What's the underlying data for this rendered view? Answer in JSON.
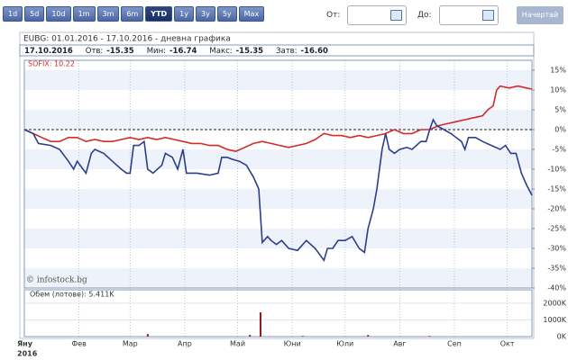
{
  "periods": [
    "1d",
    "5d",
    "10d",
    "1m",
    "3m",
    "6m",
    "YTD",
    "1y",
    "3y",
    "5y",
    "Max"
  ],
  "from_label": "От:",
  "to_label": "До:",
  "draw_button": "Начертай",
  "chart_data": {
    "type": "line",
    "title": "EUBG: 01.01.2016 - 17.10.2016 - дневна графика",
    "info": {
      "date": "17.10.2016",
      "open_label": "Отв:",
      "open": "-15.35",
      "min_label": "Мин:",
      "min": "-16.74",
      "max_label": "Макс:",
      "max": "-15.35",
      "close_label": "Затв:",
      "close": "-16.60"
    },
    "watermark": "© infostock.bg",
    "year_label": "2016",
    "xlim": [
      0,
      288
    ],
    "xticks": [
      {
        "value": 0,
        "label": "Яну"
      },
      {
        "value": 31,
        "label": "Фев"
      },
      {
        "value": 60,
        "label": "Мар"
      },
      {
        "value": 91,
        "label": "Апр"
      },
      {
        "value": 121,
        "label": "Май"
      },
      {
        "value": 152,
        "label": "Юни"
      },
      {
        "value": 182,
        "label": "Юли"
      },
      {
        "value": 213,
        "label": "Авг"
      },
      {
        "value": 244,
        "label": "Сеп"
      },
      {
        "value": 274,
        "label": "Окт"
      }
    ],
    "ylim": [
      -40,
      17.5
    ],
    "yticks": [
      {
        "value": 15,
        "label": "15%"
      },
      {
        "value": 10,
        "label": "10%"
      },
      {
        "value": 5,
        "label": "5%"
      },
      {
        "value": 0,
        "label": "0%"
      },
      {
        "value": -5,
        "label": "-5%"
      },
      {
        "value": -10,
        "label": "-10%"
      },
      {
        "value": -15,
        "label": "-15%"
      },
      {
        "value": -20,
        "label": "-20%"
      },
      {
        "value": -25,
        "label": "-25%"
      },
      {
        "value": -30,
        "label": "-30%"
      },
      {
        "value": -35,
        "label": "-35%"
      },
      {
        "value": -40,
        "label": "-40%"
      }
    ],
    "grid": true,
    "series": [
      {
        "color": "#2b3f8c",
        "x": [
          0,
          5,
          8,
          15,
          20,
          25,
          28,
          30,
          35,
          38,
          40,
          45,
          50,
          55,
          58,
          60,
          62,
          65,
          68,
          70,
          73,
          78,
          80,
          84,
          87,
          90,
          92,
          98,
          105,
          110,
          112,
          115,
          118,
          122,
          126,
          130,
          133,
          135,
          138,
          140,
          143,
          146,
          150,
          155,
          160,
          165,
          170,
          172,
          175,
          178,
          182,
          186,
          190,
          193,
          195,
          198,
          200,
          203,
          205,
          207,
          210,
          213,
          217,
          220,
          225,
          228,
          230,
          232,
          234,
          238,
          242,
          245,
          248,
          250,
          252,
          256,
          260,
          265,
          270,
          273,
          276,
          279,
          282,
          285,
          288
        ],
        "values": [
          0,
          -1,
          -3.5,
          -4,
          -5,
          -8,
          -10,
          -8,
          -11,
          -6,
          -5,
          -6,
          -8,
          -10,
          -11,
          -11,
          -4,
          -4,
          -3,
          -10,
          -11,
          -9,
          -6,
          -7,
          -10,
          -5,
          -11,
          -11,
          -11.5,
          -11,
          -7,
          -7,
          -7.5,
          -8,
          -9,
          -12,
          -15,
          -28.5,
          -27,
          -28,
          -29,
          -28,
          -30,
          -30.5,
          -28,
          -30,
          -33,
          -30,
          -30,
          -28,
          -28,
          -27,
          -30,
          -31,
          -25,
          -20,
          -15,
          -5,
          -1,
          -5,
          -6,
          -5,
          -4.5,
          -5,
          -3,
          -3,
          0,
          2.5,
          1,
          0,
          -1,
          -2,
          -3,
          -5,
          -2,
          -2,
          -3,
          -4,
          -5,
          -4,
          -6,
          -6,
          -11,
          -14,
          -16.6
        ]
      },
      {
        "name": "SOFIX: 10.22",
        "color": "#d32a2a",
        "x": [
          0,
          5,
          10,
          15,
          20,
          25,
          30,
          35,
          40,
          45,
          50,
          55,
          60,
          65,
          70,
          75,
          80,
          85,
          90,
          95,
          100,
          105,
          110,
          115,
          120,
          125,
          130,
          135,
          140,
          145,
          150,
          155,
          160,
          165,
          170,
          175,
          180,
          185,
          190,
          195,
          200,
          205,
          210,
          215,
          220,
          225,
          230,
          235,
          240,
          245,
          250,
          255,
          260,
          263,
          266,
          268,
          270,
          275,
          280,
          285,
          288
        ],
        "values": [
          0,
          -1,
          -2,
          -3,
          -3,
          -2,
          -2,
          -3,
          -2.5,
          -3,
          -3,
          -2.5,
          -2,
          -2.5,
          -2,
          -2.5,
          -2,
          -2.5,
          -3,
          -3.5,
          -3.5,
          -4,
          -4,
          -5,
          -5.5,
          -4.5,
          -3.5,
          -3,
          -3.5,
          -4,
          -4.5,
          -4,
          -3.5,
          -2.5,
          -1,
          -1.5,
          -1.5,
          -2,
          -1.5,
          -2,
          -1.5,
          -1,
          0,
          -1,
          -1,
          0,
          0,
          1,
          1.5,
          2,
          2.5,
          3,
          3.5,
          5,
          6,
          10,
          11,
          10.5,
          11,
          10.5,
          10.22
        ]
      }
    ],
    "volume": {
      "label": "Обем (лотове): 5.411K",
      "color": "#8b1a1a",
      "ylim": [
        0,
        2800
      ],
      "yticks": [
        {
          "value": 2000,
          "label": "2000K"
        },
        {
          "value": 1000,
          "label": "1000K"
        },
        {
          "value": 0,
          "label": "0K"
        }
      ],
      "x": [
        70,
        128,
        134,
        158,
        195,
        230
      ],
      "values": [
        150,
        100,
        1450,
        40,
        90,
        40
      ]
    }
  }
}
